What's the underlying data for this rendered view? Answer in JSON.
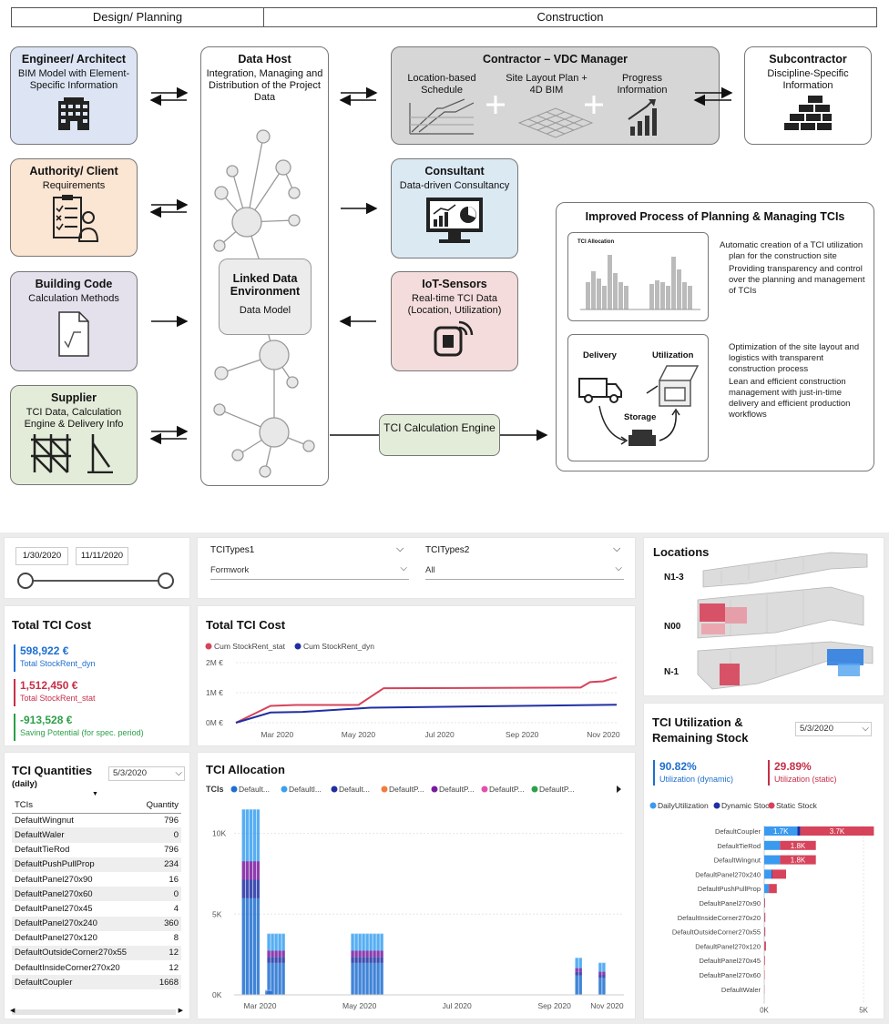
{
  "header": {
    "left": "Design/ Planning",
    "right": "Construction"
  },
  "actors": {
    "engineer": {
      "title": "Engineer/ Architect",
      "sub": "BIM Model with Element-Specific Information"
    },
    "authority": {
      "title": "Authority/ Client",
      "sub": "Requirements"
    },
    "building_code": {
      "title": "Building Code",
      "sub": "Calculation Methods"
    },
    "supplier": {
      "title": "Supplier",
      "sub": "TCI Data, Calculation Engine & Delivery Info"
    },
    "data_host": {
      "title": "Data Host",
      "sub": "Integration, Managing and Distribution of the Project Data"
    },
    "lde": {
      "title": "Linked Data Environment",
      "sub": "Data Model"
    },
    "contractor": {
      "title": "Contractor – VDC Manager",
      "items": [
        "Location-based Schedule",
        "Site Layout Plan + 4D BIM",
        "Progress Information"
      ]
    },
    "subcontractor": {
      "title": "Subcontractor",
      "sub": "Discipline-Specific Information"
    },
    "consultant": {
      "title": "Consultant",
      "sub": "Data-driven Consultancy"
    },
    "iot": {
      "title": "IoT-Sensors",
      "sub": "Real-time TCI Data (Location, Utilization)"
    },
    "engine": {
      "title": "TCI Calculation Engine"
    }
  },
  "improved": {
    "title": "Improved Process of Planning & Managing TCIs",
    "thumb_title": "TCI Allocation",
    "bullets1": [
      "Automatic creation of a TCI utilization plan for the construction site",
      "Providing transparency and control over the planning and management of TCIs"
    ],
    "labels": {
      "delivery": "Delivery",
      "utilization": "Utilization",
      "storage": "Storage"
    },
    "bullets2": [
      "Optimization of the site layout and logistics with transparent construction process",
      "Lean and efficient construction management with just-in-time delivery and efficient production workflows"
    ]
  },
  "dashboard": {
    "dates": {
      "start": "1/30/2020",
      "end": "11/11/2020"
    },
    "filters": {
      "f1_label": "TCITypes1",
      "f1_value": "Formwork",
      "f2_label": "TCITypes2",
      "f2_value": "All"
    },
    "locations": {
      "title": "Locations",
      "levels": [
        "N1-3",
        "N00",
        "N-1"
      ]
    },
    "cost": {
      "title": "Total TCI Cost",
      "dyn_value": "598,922 €",
      "dyn_label": "Total StockRent_dyn",
      "stat_value": "1,512,450 €",
      "stat_label": "Total StockRent_stat",
      "saving_value": "-913,528 €",
      "saving_label": "Saving Potential (for spec. period)"
    },
    "quantities": {
      "title": "TCI Quantities",
      "subtitle": "(daily)",
      "date": "5/3/2020",
      "col1": "TCIs",
      "col2": "Quantity",
      "rows": [
        {
          "name": "DefaultWingnut",
          "qty": "796"
        },
        {
          "name": "DefaultWaler",
          "qty": "0"
        },
        {
          "name": "DefaultTieRod",
          "qty": "796"
        },
        {
          "name": "DefaultPushPullProp",
          "qty": "234"
        },
        {
          "name": "DefaultPanel270x90",
          "qty": "16"
        },
        {
          "name": "DefaultPanel270x60",
          "qty": "0"
        },
        {
          "name": "DefaultPanel270x45",
          "qty": "4"
        },
        {
          "name": "DefaultPanel270x240",
          "qty": "360"
        },
        {
          "name": "DefaultPanel270x120",
          "qty": "8"
        },
        {
          "name": "DefaultOutsideCorner270x55",
          "qty": "12"
        },
        {
          "name": "DefaultInsideCorner270x20",
          "qty": "12"
        },
        {
          "name": "DefaultCoupler",
          "qty": "1668"
        }
      ]
    },
    "utilization": {
      "title": "TCI Utilization & Remaining Stock",
      "date": "5/3/2020",
      "dyn_value": "90.82%",
      "dyn_label": "Utilization (dynamic)",
      "stat_value": "29.89%",
      "stat_label": "Utilization (static)",
      "legend": [
        "DailyUtilization",
        "Dynamic Stock",
        "Static Stock"
      ]
    }
  },
  "chart_data": [
    {
      "type": "line",
      "title": "Total TCI Cost",
      "legend": [
        "Cum StockRent_stat",
        "Cum StockRent_dyn"
      ],
      "y_ticks": [
        "2M €",
        "1M €",
        "0M €"
      ],
      "x_ticks": [
        "Mar 2020",
        "May 2020",
        "Jul 2020",
        "Sep 2020",
        "Nov 2020"
      ],
      "ylim": [
        0,
        2000000
      ],
      "x_range": [
        "2020-01-30",
        "2020-11-11"
      ],
      "series": [
        {
          "name": "Cum StockRent_stat",
          "color": "#d6435a",
          "points": [
            [
              "2020-01-30",
              0
            ],
            [
              "2020-02-25",
              560000
            ],
            [
              "2020-03-15",
              590000
            ],
            [
              "2020-05-01",
              590000
            ],
            [
              "2020-05-20",
              1150000
            ],
            [
              "2020-10-15",
              1170000
            ],
            [
              "2020-10-22",
              1350000
            ],
            [
              "2020-11-01",
              1380000
            ],
            [
              "2020-11-11",
              1512450
            ]
          ]
        },
        {
          "name": "Cum StockRent_dyn",
          "color": "#1f2fa3",
          "points": [
            [
              "2020-01-30",
              0
            ],
            [
              "2020-02-25",
              340000
            ],
            [
              "2020-03-20",
              360000
            ],
            [
              "2020-05-10",
              500000
            ],
            [
              "2020-11-11",
              598922
            ]
          ]
        }
      ]
    },
    {
      "type": "bar",
      "title": "TCI Allocation",
      "legend_label": "TCIs",
      "legend": [
        "Default...",
        "Defaultl...",
        "Default...",
        "DefaultP...",
        "DefaultP...",
        "DefaultP...",
        "DefaultP..."
      ],
      "legend_colors": [
        "#1e6fd0",
        "#3aa0f0",
        "#1f2fa3",
        "#f07d3a",
        "#7a1aa0",
        "#e44fae",
        "#2da04a"
      ],
      "y_ticks": [
        "10K",
        "5K",
        "0K"
      ],
      "x_ticks": [
        "Mar 2020",
        "May 2020",
        "Jul 2020",
        "Sep 2020",
        "Nov 2020"
      ],
      "ylim": [
        0,
        11500
      ],
      "groups": [
        {
          "start": 0.02,
          "width": 0.04,
          "value": 11500
        },
        {
          "start": 0.085,
          "width": 0.045,
          "value": 3800
        },
        {
          "start": 0.08,
          "width": 0.015,
          "value": 300
        },
        {
          "start": 0.3,
          "width": 0.08,
          "value": 3800
        },
        {
          "start": 0.875,
          "width": 0.015,
          "value": 2300
        },
        {
          "start": 0.935,
          "width": 0.015,
          "value": 2000
        }
      ]
    },
    {
      "type": "bar",
      "title": "TCI Utilization & Remaining Stock",
      "orientation": "horizontal",
      "categories": [
        "DefaultCoupler",
        "DefaultTieRod",
        "DefaultWingnut",
        "DefaultPanel270x240",
        "DefaultPushPullProp",
        "DefaultPanel270x90",
        "DefaultInsideCorner270x20",
        "DefaultOutsideCorner270x55",
        "DefaultPanel270x120",
        "DefaultPanel270x45",
        "DefaultPanel270x60",
        "DefaultWaler"
      ],
      "x_ticks": [
        "0K",
        "5K"
      ],
      "xlim": [
        0,
        5500
      ],
      "series": [
        {
          "name": "DailyUtilization",
          "color": "#3a9af0",
          "values": [
            1668,
            796,
            796,
            360,
            234,
            16,
            12,
            12,
            8,
            4,
            0,
            0
          ]
        },
        {
          "name": "Dynamic Stock",
          "color": "#1f2fa3",
          "values": [
            150,
            0,
            0,
            40,
            0,
            0,
            0,
            0,
            0,
            0,
            0,
            0
          ]
        },
        {
          "name": "Static Stock",
          "color": "#d6435a",
          "values": [
            3700,
            1800,
            1800,
            700,
            400,
            30,
            40,
            40,
            80,
            30,
            20,
            10
          ]
        }
      ],
      "data_labels": [
        [
          "1.7K",
          "3.7K"
        ],
        [
          "1.8K"
        ],
        [
          "1.8K"
        ]
      ]
    }
  ]
}
